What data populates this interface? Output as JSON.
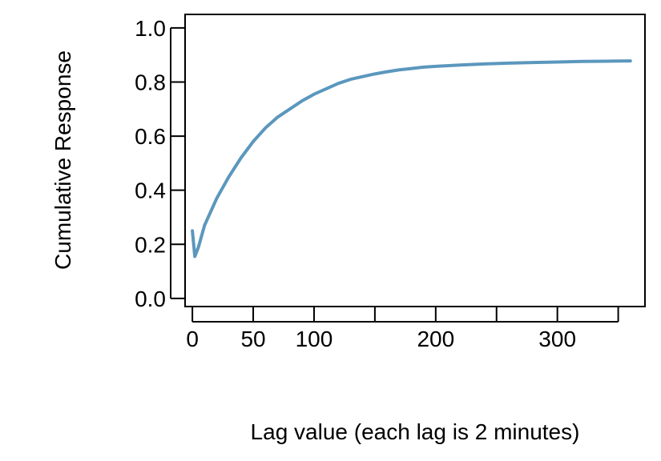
{
  "chart_data": {
    "type": "line",
    "title": "",
    "xlabel": "Lag value (each lag is 2 minutes)",
    "ylabel": "Cumulative Response",
    "xlim": [
      -6,
      372
    ],
    "ylim": [
      -0.03,
      1.05
    ],
    "x_ticks": [
      0,
      50,
      100,
      150,
      200,
      250,
      300,
      350
    ],
    "x_tick_labels": [
      "0",
      "50",
      "100",
      "",
      "200",
      "",
      "300",
      ""
    ],
    "y_ticks": [
      0.0,
      0.2,
      0.4,
      0.6,
      0.8,
      1.0
    ],
    "y_tick_labels": [
      "0.0",
      "0.2",
      "0.4",
      "0.6",
      "0.8",
      "1.0"
    ],
    "grid": false,
    "legend": "none",
    "series": [
      {
        "color": "#5b97bd",
        "x": [
          0,
          2,
          5,
          10,
          20,
          30,
          40,
          50,
          60,
          70,
          80,
          90,
          100,
          110,
          120,
          130,
          140,
          150,
          160,
          170,
          180,
          190,
          200,
          220,
          240,
          260,
          280,
          300,
          320,
          340,
          360
        ],
        "y": [
          0.25,
          0.155,
          0.19,
          0.27,
          0.37,
          0.45,
          0.52,
          0.58,
          0.63,
          0.67,
          0.7,
          0.73,
          0.755,
          0.775,
          0.795,
          0.81,
          0.82,
          0.83,
          0.838,
          0.845,
          0.85,
          0.855,
          0.858,
          0.863,
          0.867,
          0.87,
          0.872,
          0.874,
          0.876,
          0.877,
          0.878
        ]
      }
    ]
  }
}
